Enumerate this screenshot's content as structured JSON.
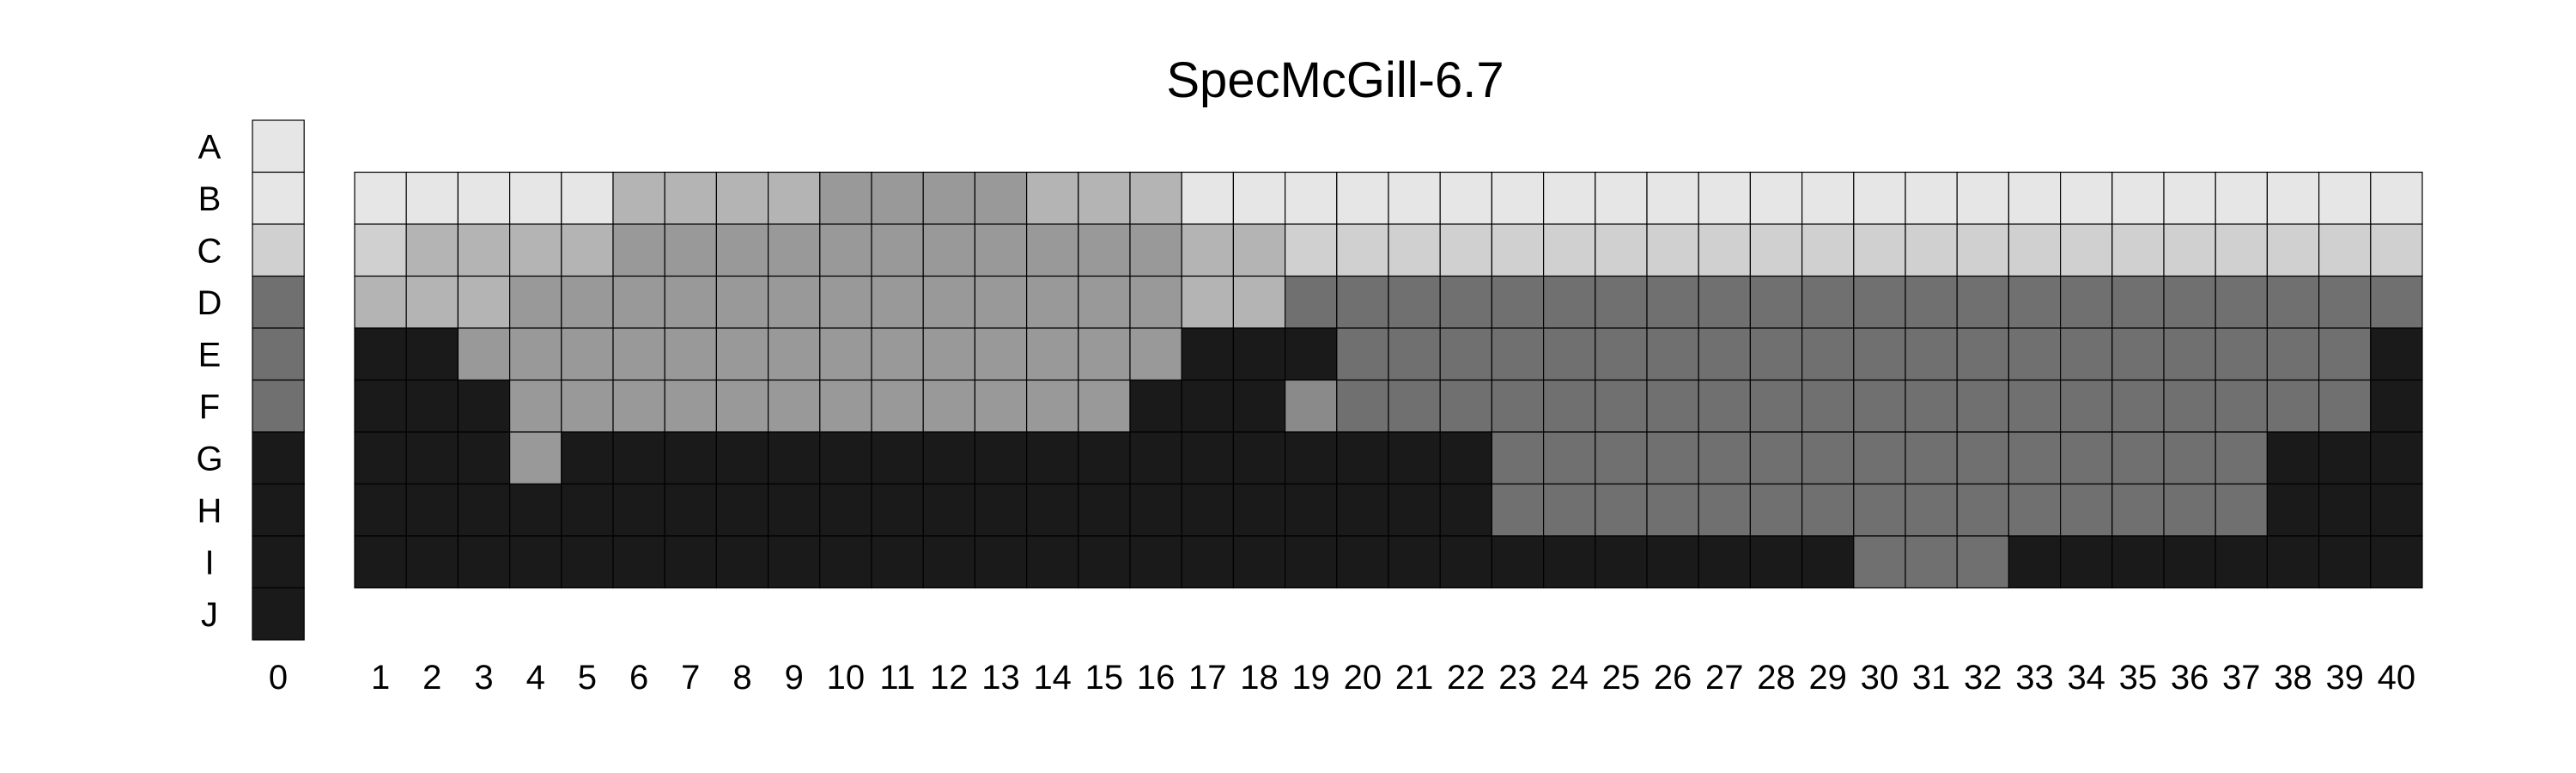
{
  "chart_data": {
    "type": "heatmap",
    "title": "SpecMcGill-6.7",
    "row_labels": [
      "A",
      "B",
      "C",
      "D",
      "E",
      "F",
      "G",
      "H",
      "I",
      "J"
    ],
    "reference_column": {
      "label": "0",
      "values": [
        1,
        1,
        2,
        6,
        6,
        6,
        9,
        9,
        9,
        9
      ]
    },
    "column_labels": [
      "1",
      "2",
      "3",
      "4",
      "5",
      "6",
      "7",
      "8",
      "9",
      "10",
      "11",
      "12",
      "13",
      "14",
      "15",
      "16",
      "17",
      "18",
      "19",
      "20",
      "21",
      "22",
      "23",
      "24",
      "25",
      "26",
      "27",
      "28",
      "29",
      "30",
      "31",
      "32",
      "33",
      "34",
      "35",
      "36",
      "37",
      "38",
      "39",
      "40"
    ],
    "grid_rows": [
      "B",
      "C",
      "D",
      "E",
      "F",
      "G",
      "H",
      "I"
    ],
    "grid_values": [
      [
        1,
        1,
        1,
        1,
        1,
        3,
        3,
        3,
        3,
        4,
        4,
        4,
        4,
        3,
        3,
        3,
        1,
        1,
        1,
        1,
        1,
        1,
        1,
        1,
        1,
        1,
        1,
        1,
        1,
        1,
        1,
        1,
        1,
        1,
        1,
        1,
        1,
        1,
        1,
        1
      ],
      [
        2,
        3,
        3,
        3,
        3,
        4,
        4,
        4,
        4,
        4,
        4,
        4,
        4,
        4,
        4,
        4,
        3,
        3,
        2,
        2,
        2,
        2,
        2,
        2,
        2,
        2,
        2,
        2,
        2,
        2,
        2,
        2,
        2,
        2,
        2,
        2,
        2,
        2,
        2,
        2
      ],
      [
        3,
        3,
        3,
        4,
        4,
        4,
        4,
        4,
        4,
        4,
        4,
        4,
        4,
        4,
        4,
        4,
        3,
        3,
        6,
        6,
        6,
        6,
        6,
        6,
        6,
        6,
        6,
        6,
        6,
        6,
        6,
        6,
        6,
        6,
        6,
        6,
        6,
        6,
        6,
        6
      ],
      [
        9,
        9,
        4,
        4,
        4,
        4,
        4,
        4,
        4,
        4,
        4,
        4,
        4,
        4,
        4,
        4,
        9,
        9,
        9,
        6,
        6,
        6,
        6,
        6,
        6,
        6,
        6,
        6,
        6,
        6,
        6,
        6,
        6,
        6,
        6,
        6,
        6,
        6,
        6,
        9
      ],
      [
        9,
        9,
        9,
        4,
        4,
        4,
        4,
        4,
        4,
        4,
        4,
        4,
        4,
        4,
        4,
        9,
        9,
        9,
        5,
        6,
        6,
        6,
        6,
        6,
        6,
        6,
        6,
        6,
        6,
        6,
        6,
        6,
        6,
        6,
        6,
        6,
        6,
        6,
        6,
        9
      ],
      [
        9,
        9,
        9,
        4,
        9,
        9,
        9,
        9,
        9,
        9,
        9,
        9,
        9,
        9,
        9,
        9,
        9,
        9,
        9,
        9,
        9,
        9,
        6,
        6,
        6,
        6,
        6,
        6,
        6,
        6,
        6,
        6,
        6,
        6,
        6,
        6,
        6,
        9,
        9,
        9
      ],
      [
        9,
        9,
        9,
        9,
        9,
        9,
        9,
        9,
        9,
        9,
        9,
        9,
        9,
        9,
        9,
        9,
        9,
        9,
        9,
        9,
        9,
        9,
        6,
        6,
        6,
        6,
        6,
        6,
        6,
        6,
        6,
        6,
        6,
        6,
        6,
        6,
        6,
        9,
        9,
        9
      ],
      [
        9,
        9,
        9,
        9,
        9,
        9,
        9,
        9,
        9,
        9,
        9,
        9,
        9,
        9,
        9,
        9,
        9,
        9,
        9,
        9,
        9,
        9,
        9,
        9,
        9,
        9,
        9,
        9,
        9,
        6,
        6,
        6,
        9,
        9,
        9,
        9,
        9,
        9,
        9,
        9
      ]
    ],
    "level_colors": {
      "1": "#e6e6e6",
      "2": "#d0d0d0",
      "3": "#b4b4b4",
      "4": "#999999",
      "5": "#8a8a8a",
      "6": "#707070",
      "9": "#1a1a1a"
    },
    "cell_border_color": "#000000",
    "legend": "none",
    "grid": true
  }
}
